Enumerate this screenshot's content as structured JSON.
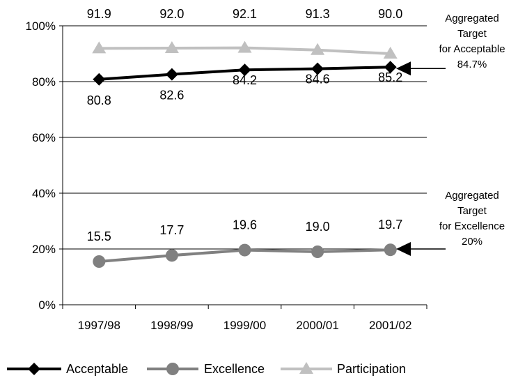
{
  "chart_data": {
    "type": "line",
    "title": "",
    "xlabel": "",
    "ylabel": "",
    "categories": [
      "1997/98",
      "1998/99",
      "1999/00",
      "2000/01",
      "2001/02"
    ],
    "ylim": [
      0,
      100
    ],
    "yticks": [
      0,
      20,
      40,
      60,
      80,
      100
    ],
    "ytick_labels": [
      "0%",
      "20%",
      "40%",
      "60%",
      "80%",
      "100%"
    ],
    "grid": "horizontal",
    "legend_position": "bottom",
    "series": [
      {
        "name": "Acceptable",
        "values": [
          80.8,
          82.6,
          84.2,
          84.6,
          85.2
        ],
        "labels": [
          "80.8",
          "82.6",
          "84.2",
          "84.6",
          "85.2"
        ],
        "color": "#000000",
        "marker": "diamond"
      },
      {
        "name": "Excellence",
        "values": [
          15.5,
          17.7,
          19.6,
          19.0,
          19.7
        ],
        "labels": [
          "15.5",
          "17.7",
          "19.6",
          "19.0",
          "19.7"
        ],
        "color": "#808080",
        "marker": "circle"
      },
      {
        "name": "Participation",
        "values": [
          91.9,
          92.0,
          92.1,
          91.3,
          90.0
        ],
        "labels": [
          "91.9",
          "92.0",
          "92.1",
          "91.3",
          "90.0"
        ],
        "color": "#c0c0c0",
        "marker": "triangle"
      }
    ],
    "annotations": [
      {
        "lines": [
          "Aggregated",
          "Target",
          "for Acceptable",
          "84.7%"
        ],
        "value": 84.7
      },
      {
        "lines": [
          "Aggregated",
          "Target",
          "for Excellence",
          "20%"
        ],
        "value": 20
      }
    ]
  }
}
